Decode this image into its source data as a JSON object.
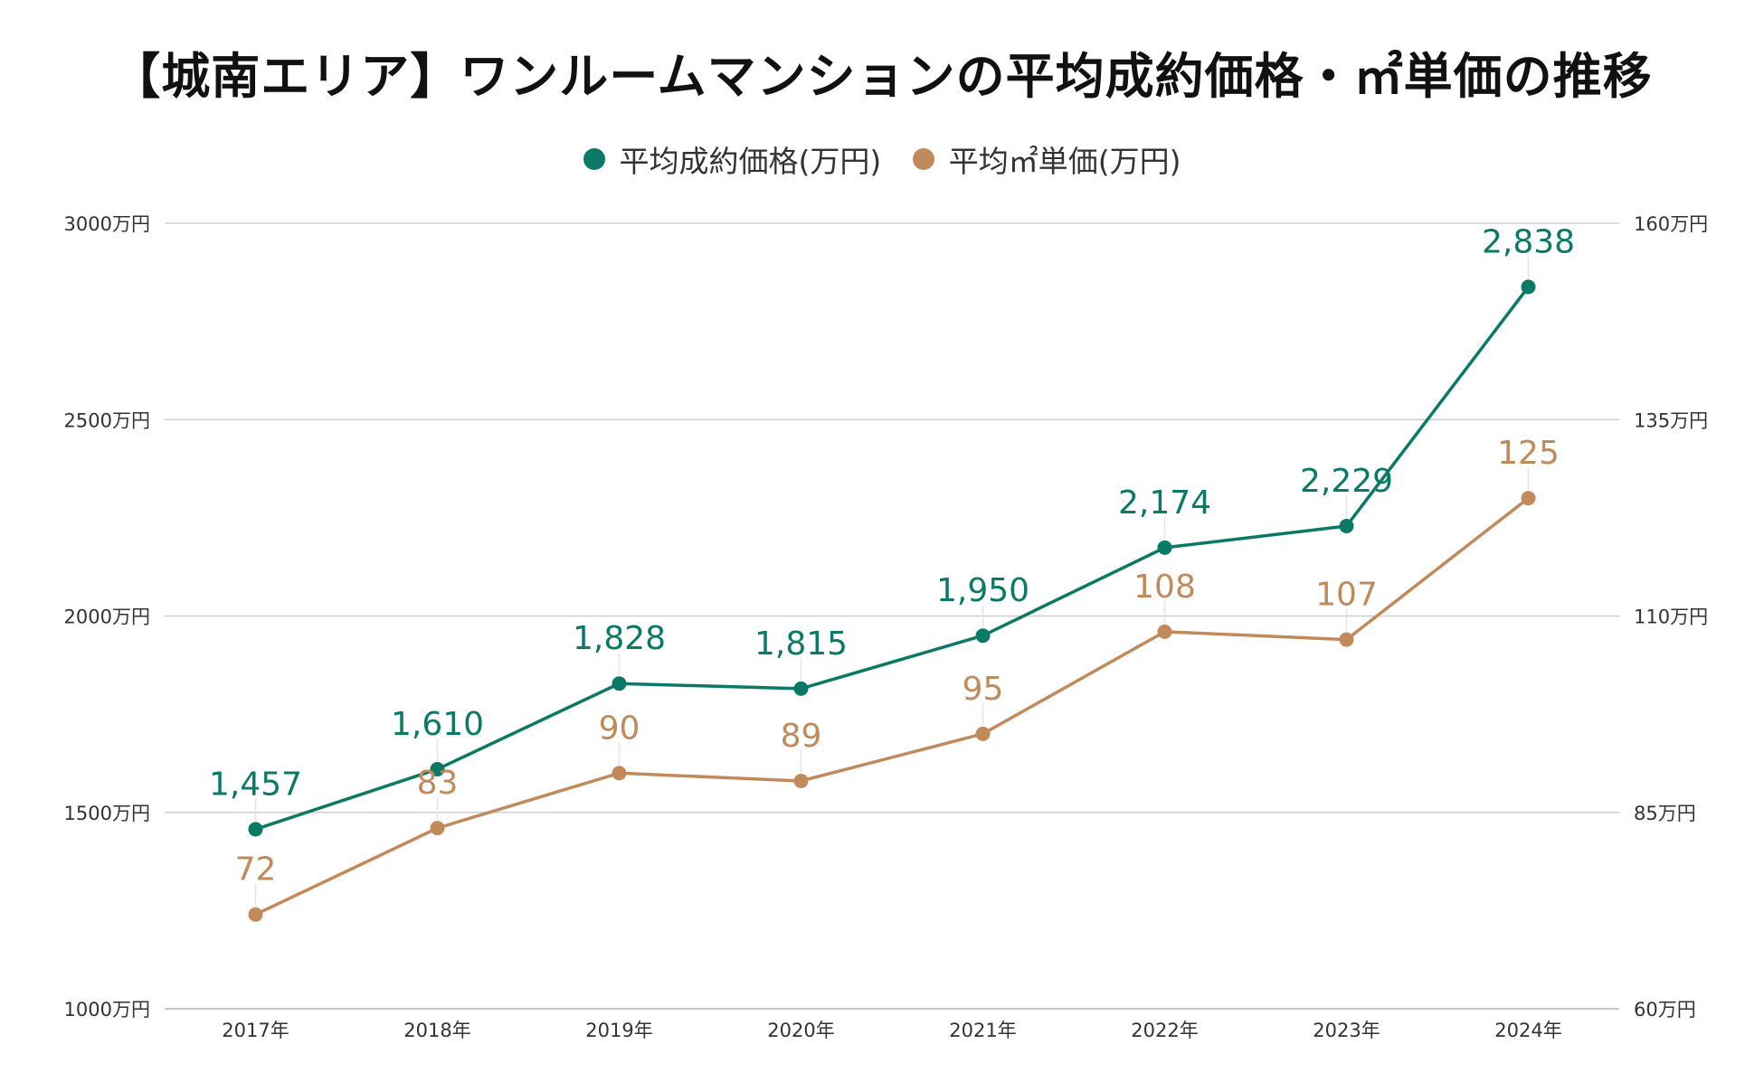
{
  "chart_data": {
    "type": "line",
    "title": "【城南エリア】ワンルームマンションの平均成約価格・㎡単価の推移",
    "categories": [
      "2017年",
      "2018年",
      "2019年",
      "2020年",
      "2021年",
      "2022年",
      "2023年",
      "2024年"
    ],
    "series": [
      {
        "name": "平均成約価格(万円)",
        "axis": "left",
        "color": "#0a7a66",
        "values": [
          1457,
          1610,
          1828,
          1815,
          1950,
          2174,
          2229,
          2838
        ],
        "labels": [
          "1,457",
          "1,610",
          "1,828",
          "1,815",
          "1,950",
          "2,174",
          "2,229",
          "2,838"
        ]
      },
      {
        "name": "平均㎡単価(万円)",
        "axis": "right",
        "color": "#c08a5b",
        "values": [
          72,
          83,
          90,
          89,
          95,
          108,
          107,
          125
        ],
        "labels": [
          "72",
          "83",
          "90",
          "89",
          "95",
          "108",
          "107",
          "125"
        ]
      }
    ],
    "y_left": {
      "ylim": [
        1000,
        3000
      ],
      "ticks": [
        1000,
        1500,
        2000,
        2500,
        3000
      ],
      "tick_labels": [
        "1000万円",
        "1500万円",
        "2000万円",
        "2500万円",
        "3000万円"
      ]
    },
    "y_right": {
      "ylim": [
        60,
        160
      ],
      "ticks": [
        60,
        85,
        110,
        135,
        160
      ],
      "tick_labels": [
        "60万円",
        "85万円",
        "110万円",
        "135万円",
        "160万円"
      ]
    },
    "grid": true,
    "legend": "top-center"
  }
}
